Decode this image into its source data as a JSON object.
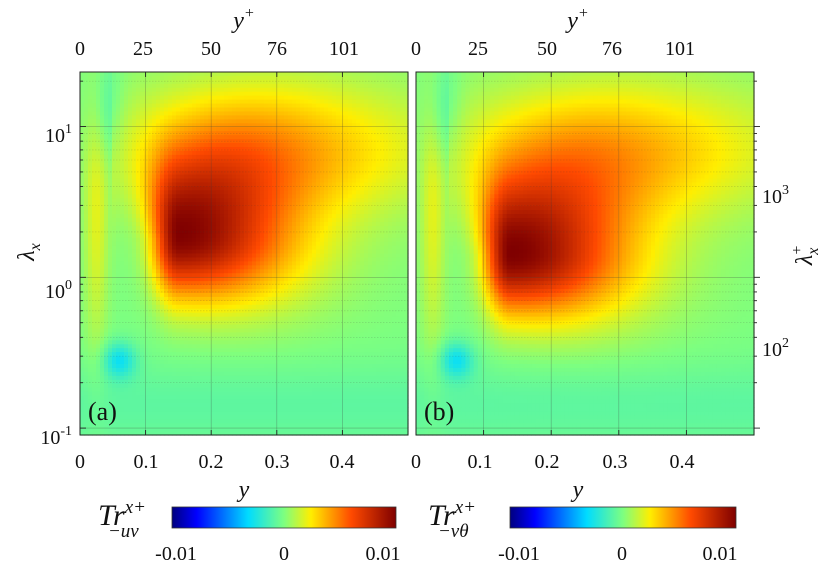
{
  "chart_data": [
    {
      "type": "heatmap",
      "panel_label": "(a)",
      "xlabel": "y",
      "x2label": "y",
      "x2label_sup": "+",
      "ylabel": "λ",
      "ylabel_sub": "x",
      "xlim": [
        0,
        0.5
      ],
      "ylim": [
        0.09,
        23
      ],
      "yscale": "log",
      "x_ticks": [
        "0",
        "0.1",
        "0.2",
        "0.3",
        "0.4"
      ],
      "x2_ticks": [
        "0",
        "25",
        "50",
        "76",
        "101"
      ],
      "y_ticks": [
        {
          "value": 10,
          "base": "10",
          "exp": "1"
        },
        {
          "value": 1,
          "base": "10",
          "exp": "0"
        },
        {
          "value": 0.1,
          "base": "10",
          "exp": "-1"
        }
      ],
      "grid": true,
      "peak": {
        "y": 0.15,
        "lambda_x": 1.8,
        "value": 0.0095
      },
      "colorbar": {
        "label_base": "Tr",
        "label_sup": "x+",
        "label_sub": "−uv",
        "min": -0.01,
        "max": 0.01,
        "ticks": [
          "-0.01",
          "0",
          "0.01"
        ]
      }
    },
    {
      "type": "heatmap",
      "panel_label": "(b)",
      "xlabel": "y",
      "x2label": "y",
      "x2label_sup": "+",
      "ylabel": "λ",
      "ylabel_sub": "x",
      "ylabel_sup": "+",
      "xlim": [
        0,
        0.5
      ],
      "ylim": [
        0.09,
        23
      ],
      "yscale": "log",
      "x_ticks": [
        "0",
        "0.1",
        "0.2",
        "0.3",
        "0.4"
      ],
      "x2_ticks": [
        "0",
        "25",
        "50",
        "76",
        "101"
      ],
      "y2_ticks": [
        {
          "value": 1000,
          "base": "10",
          "exp": "3"
        },
        {
          "value": 100,
          "base": "10",
          "exp": "2"
        }
      ],
      "grid": true,
      "peak": {
        "y": 0.14,
        "lambda_x": 1.4,
        "value": 0.0098
      },
      "colorbar": {
        "label_base": "Tr",
        "label_sup": "x+",
        "label_sub": "−vθ",
        "min": -0.01,
        "max": 0.01,
        "ticks": [
          "-0.01",
          "0",
          "0.01"
        ]
      }
    }
  ]
}
